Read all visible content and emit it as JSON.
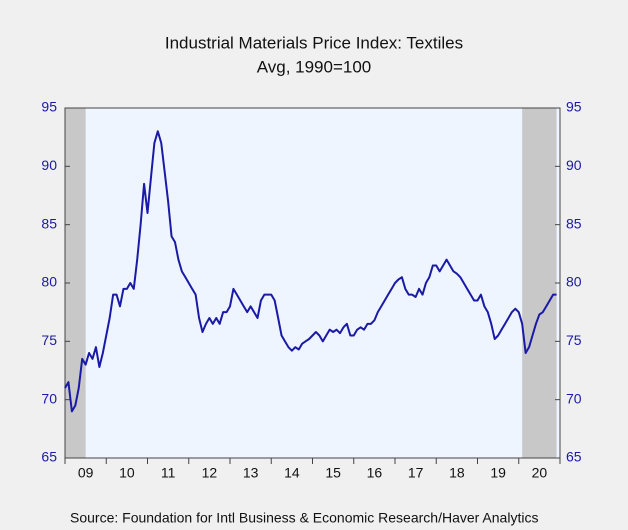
{
  "chart_data": {
    "type": "line",
    "title": "Industrial Materials Price Index: Textiles",
    "subtitle": "Avg, 1990=100",
    "source": "Source:  Foundation for Intl Business & Economic Research/Haver Analytics",
    "x": [
      2009.0,
      2009.083,
      2009.167,
      2009.25,
      2009.333,
      2009.417,
      2009.5,
      2009.583,
      2009.667,
      2009.75,
      2009.833,
      2009.917,
      2010.0,
      2010.083,
      2010.167,
      2010.25,
      2010.333,
      2010.417,
      2010.5,
      2010.583,
      2010.667,
      2010.75,
      2010.833,
      2010.917,
      2011.0,
      2011.083,
      2011.167,
      2011.25,
      2011.333,
      2011.417,
      2011.5,
      2011.583,
      2011.667,
      2011.75,
      2011.833,
      2011.917,
      2012.0,
      2012.083,
      2012.167,
      2012.25,
      2012.333,
      2012.417,
      2012.5,
      2012.583,
      2012.667,
      2012.75,
      2012.833,
      2012.917,
      2013.0,
      2013.083,
      2013.167,
      2013.25,
      2013.333,
      2013.417,
      2013.5,
      2013.583,
      2013.667,
      2013.75,
      2013.833,
      2013.917,
      2014.0,
      2014.083,
      2014.167,
      2014.25,
      2014.333,
      2014.417,
      2014.5,
      2014.583,
      2014.667,
      2014.75,
      2014.833,
      2014.917,
      2015.0,
      2015.083,
      2015.167,
      2015.25,
      2015.333,
      2015.417,
      2015.5,
      2015.583,
      2015.667,
      2015.75,
      2015.833,
      2015.917,
      2016.0,
      2016.083,
      2016.167,
      2016.25,
      2016.333,
      2016.417,
      2016.5,
      2016.583,
      2016.667,
      2016.75,
      2016.833,
      2016.917,
      2017.0,
      2017.083,
      2017.167,
      2017.25,
      2017.333,
      2017.417,
      2017.5,
      2017.583,
      2017.667,
      2017.75,
      2017.833,
      2017.917,
      2018.0,
      2018.083,
      2018.167,
      2018.25,
      2018.333,
      2018.417,
      2018.5,
      2018.583,
      2018.667,
      2018.75,
      2018.833,
      2018.917,
      2019.0,
      2019.083,
      2019.167,
      2019.25,
      2019.333,
      2019.417,
      2019.5,
      2019.583,
      2019.667,
      2019.75,
      2019.833,
      2019.917,
      2020.0,
      2020.083,
      2020.167,
      2020.25,
      2020.333,
      2020.417,
      2020.5,
      2020.583,
      2020.667,
      2020.75,
      2020.833,
      2020.917
    ],
    "values": [
      71.0,
      71.5,
      69.0,
      69.5,
      71.0,
      73.5,
      73.0,
      74.0,
      73.5,
      74.5,
      72.8,
      74.0,
      75.5,
      77.0,
      79.0,
      79.0,
      78.0,
      79.5,
      79.5,
      80.0,
      79.5,
      82.0,
      85.0,
      88.5,
      86.0,
      89.0,
      92.0,
      93.0,
      92.0,
      89.5,
      87.0,
      84.0,
      83.5,
      82.0,
      81.0,
      80.5,
      80.0,
      79.5,
      79.0,
      77.0,
      75.8,
      76.5,
      77.0,
      76.5,
      77.0,
      76.5,
      77.5,
      77.5,
      78.0,
      79.5,
      79.0,
      78.5,
      78.0,
      77.5,
      78.0,
      77.5,
      77.0,
      78.5,
      79.0,
      79.0,
      79.0,
      78.5,
      77.0,
      75.5,
      75.0,
      74.5,
      74.2,
      74.5,
      74.3,
      74.8,
      75.0,
      75.2,
      75.5,
      75.8,
      75.5,
      75.0,
      75.5,
      76.0,
      75.8,
      76.0,
      75.7,
      76.2,
      76.5,
      75.5,
      75.5,
      76.0,
      76.2,
      76.0,
      76.5,
      76.5,
      76.8,
      77.5,
      78.0,
      78.5,
      79.0,
      79.5,
      80.0,
      80.3,
      80.5,
      79.5,
      79.0,
      79.0,
      78.8,
      79.5,
      79.0,
      80.0,
      80.5,
      81.5,
      81.5,
      81.0,
      81.5,
      82.0,
      81.5,
      81.0,
      80.8,
      80.5,
      80.0,
      79.5,
      79.0,
      78.5,
      78.5,
      79.0,
      78.0,
      77.5,
      76.5,
      75.2,
      75.5,
      76.0,
      76.5,
      77.0,
      77.5,
      77.8,
      77.5,
      76.5,
      74.0,
      74.5,
      75.5,
      76.5,
      77.3,
      77.5,
      78.0,
      78.5,
      79.0,
      79.0
    ],
    "color": "#1a1aa6",
    "xlim": [
      2009.0,
      2021.0
    ],
    "xticks": [
      {
        "value": 2009.5,
        "label": "09"
      },
      {
        "value": 2010.5,
        "label": "10"
      },
      {
        "value": 2011.5,
        "label": "11"
      },
      {
        "value": 2012.5,
        "label": "12"
      },
      {
        "value": 2013.5,
        "label": "13"
      },
      {
        "value": 2014.5,
        "label": "14"
      },
      {
        "value": 2015.5,
        "label": "15"
      },
      {
        "value": 2016.5,
        "label": "16"
      },
      {
        "value": 2017.5,
        "label": "17"
      },
      {
        "value": 2018.5,
        "label": "18"
      },
      {
        "value": 2019.5,
        "label": "19"
      },
      {
        "value": 2020.5,
        "label": "20"
      }
    ],
    "xminorticks": [
      2009,
      2010,
      2011,
      2012,
      2013,
      2014,
      2015,
      2016,
      2017,
      2018,
      2019,
      2020,
      2021
    ],
    "ylim": [
      65,
      95
    ],
    "yticks": [
      65,
      70,
      75,
      80,
      85,
      90,
      95
    ],
    "y2lim": [
      65,
      95
    ],
    "y2ticks": [
      65,
      70,
      75,
      80,
      85,
      90,
      95
    ],
    "recessions": [
      {
        "start": 2009.0,
        "end": 2009.5
      },
      {
        "start": 2020.083,
        "end": 2020.917
      }
    ],
    "grid": false
  }
}
